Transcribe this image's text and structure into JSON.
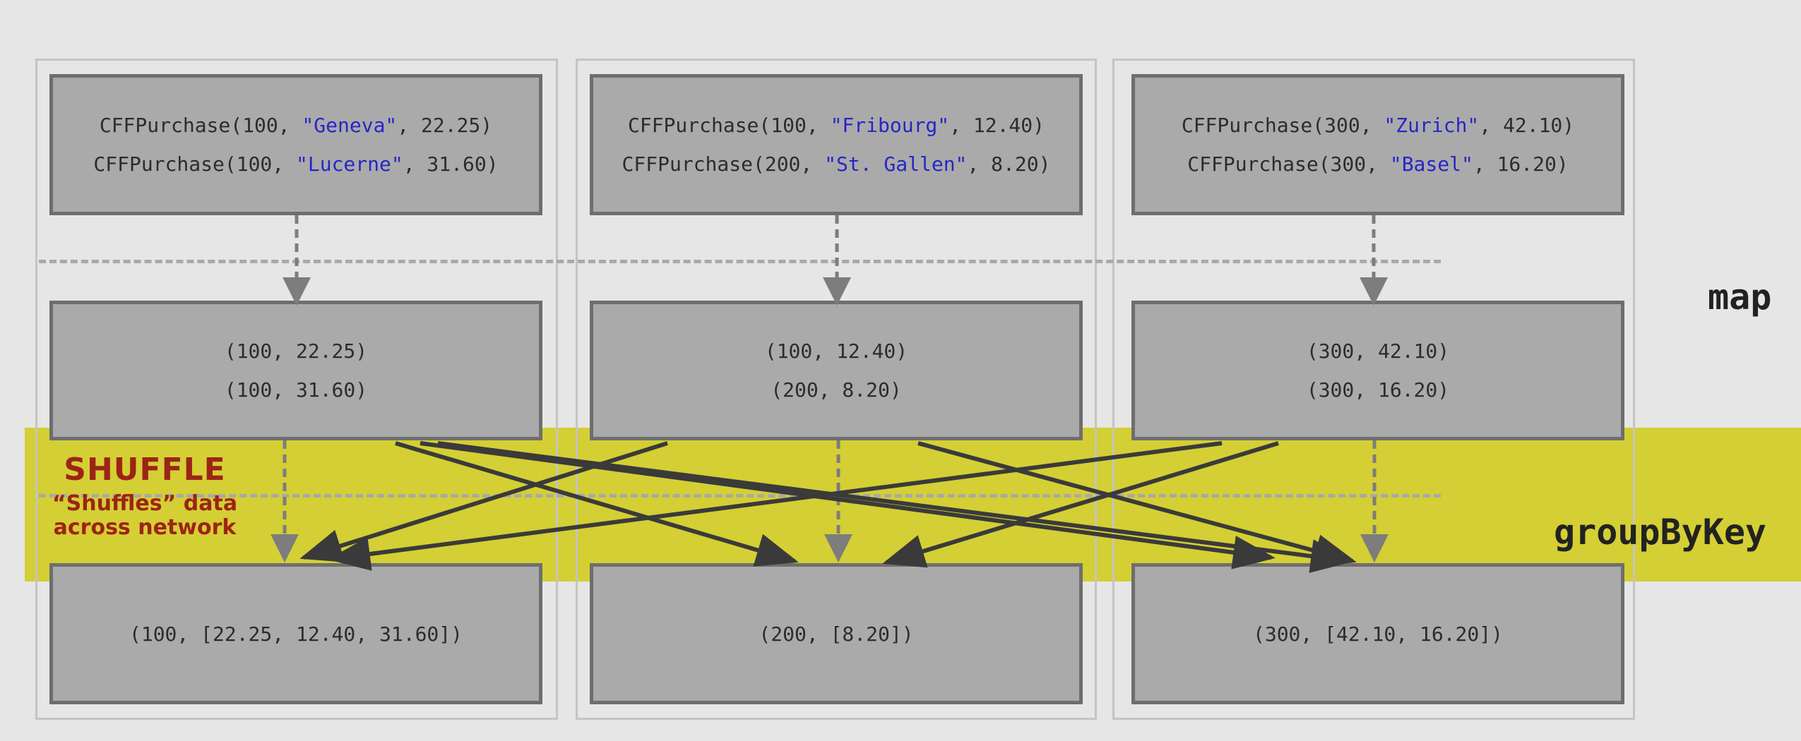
{
  "columns": [
    {
      "input": [
        {
          "pre": "CFFPurchase(100, ",
          "str": "\"Geneva\"",
          "post": ", 22.25)"
        },
        {
          "pre": "CFFPurchase(100, ",
          "str": "\"Lucerne\"",
          "post": ", 31.60)"
        }
      ],
      "mapped": [
        "(100, 22.25)",
        "(100, 31.60)"
      ],
      "grouped": "(100, [22.25, 12.40, 31.60])"
    },
    {
      "input": [
        {
          "pre": "CFFPurchase(100, ",
          "str": "\"Fribourg\"",
          "post": ", 12.40)"
        },
        {
          "pre": "CFFPurchase(200, ",
          "str": "\"St. Gallen\"",
          "post": ", 8.20)"
        }
      ],
      "mapped": [
        "(100, 12.40)",
        "(200, 8.20)"
      ],
      "grouped": "(200, [8.20])"
    },
    {
      "input": [
        {
          "pre": "CFFPurchase(300, ",
          "str": "\"Zurich\"",
          "post": ", 42.10)"
        },
        {
          "pre": "CFFPurchase(300, ",
          "str": "\"Basel\"",
          "post": ", 16.20)"
        }
      ],
      "mapped": [
        "(300, 42.10)",
        "(300, 16.20)"
      ],
      "grouped": "(300, [42.10, 16.20])"
    }
  ],
  "stages": {
    "map": "map",
    "groupByKey": "groupByKey"
  },
  "shuffle": {
    "title": "SHUFFLE",
    "line1": "“Shuffles” data",
    "line2": "across network"
  },
  "colors": {
    "background": "#e6e6e6",
    "box_fill": "#aaaaaa",
    "box_border": "#6e6e6e",
    "shuffle_band": "#d4cf34",
    "shuffle_text": "#9c2416",
    "string_literal": "#2626c6",
    "shuffle_arrow": "#3a3a3a",
    "dashed_arrow": "#7d7d7d"
  }
}
